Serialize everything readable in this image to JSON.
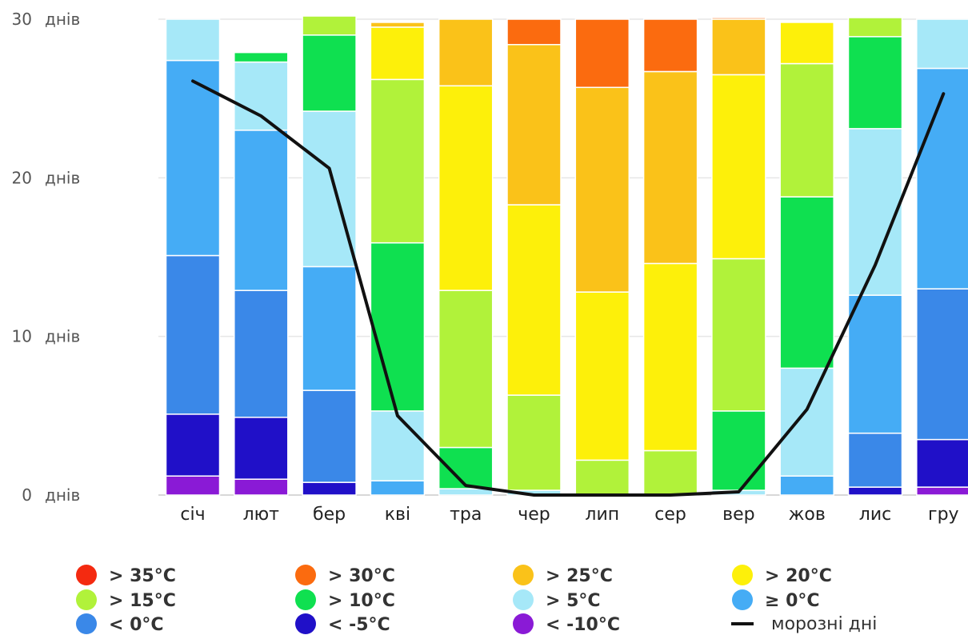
{
  "chart_data": {
    "type": "bar",
    "stacked": true,
    "categories": [
      "січ",
      "лют",
      "бер",
      "кві",
      "тра",
      "чер",
      "лип",
      "сер",
      "вер",
      "жов",
      "лис",
      "гру"
    ],
    "ylim": [
      0,
      30
    ],
    "yticks": [
      0,
      10,
      20,
      30
    ],
    "yunit": "днів",
    "grid": true,
    "legend_position": "bottom",
    "series": [
      {
        "name": "< -10°C",
        "color": "#8a1ad6",
        "values": [
          1.2,
          1.0,
          0,
          0,
          0,
          0,
          0,
          0,
          0,
          0,
          0,
          0.5
        ]
      },
      {
        "name": "< -5°C",
        "color": "#2010c8",
        "values": [
          3.9,
          3.9,
          0.8,
          0,
          0,
          0,
          0,
          0,
          0,
          0,
          0.5,
          3.0
        ]
      },
      {
        "name": "< 0°C",
        "color": "#3a88e8",
        "values": [
          10.0,
          8.0,
          5.8,
          0,
          0,
          0,
          0,
          0,
          0,
          0,
          3.4,
          9.5
        ]
      },
      {
        "name": "≥ 0°C",
        "color": "#45acf5",
        "values": [
          12.3,
          10.1,
          7.8,
          0.9,
          0,
          0,
          0,
          0,
          0,
          1.2,
          8.7,
          13.9
        ]
      },
      {
        "name": "> 5°C",
        "color": "#a6e8f8",
        "values": [
          2.6,
          4.3,
          9.8,
          4.4,
          0.4,
          0.3,
          0,
          0,
          0.3,
          6.8,
          10.5,
          3.1
        ]
      },
      {
        "name": "> 10°C",
        "color": "#0fe050",
        "values": [
          0,
          0.6,
          4.8,
          10.6,
          2.6,
          0,
          0,
          0,
          5.0,
          10.8,
          5.8,
          0
        ]
      },
      {
        "name": "> 15°C",
        "color": "#b1f23a",
        "values": [
          0,
          0,
          1.2,
          10.3,
          9.9,
          6.0,
          2.2,
          2.8,
          9.6,
          8.4,
          1.2,
          0
        ]
      },
      {
        "name": "> 20°C",
        "color": "#fdf00a",
        "values": [
          0,
          0,
          0,
          3.3,
          12.9,
          12.0,
          10.6,
          11.8,
          11.6,
          2.6,
          0,
          0
        ]
      },
      {
        "name": "> 25°C",
        "color": "#fac219",
        "values": [
          0,
          0,
          0,
          0.3,
          4.2,
          10.1,
          12.9,
          12.1,
          3.5,
          0,
          0,
          0
        ]
      },
      {
        "name": "> 30°C",
        "color": "#fb6b0f",
        "values": [
          0,
          0,
          0,
          0,
          0,
          1.6,
          4.3,
          3.3,
          0.1,
          0,
          0,
          0
        ]
      },
      {
        "name": "> 35°C",
        "color": "#f42a10",
        "values": [
          0,
          0,
          0,
          0,
          0,
          0,
          0,
          0,
          0,
          0,
          0,
          0
        ]
      }
    ],
    "line": {
      "name": "морозні дні",
      "color": "#111111",
      "values": [
        26.1,
        23.9,
        20.6,
        5.0,
        0.6,
        0,
        0,
        0,
        0.2,
        5.4,
        14.5,
        25.3
      ]
    },
    "legend": [
      {
        "label": "> 35°C",
        "color": "#f42a10",
        "kind": "dot"
      },
      {
        "label": "> 30°C",
        "color": "#fb6b0f",
        "kind": "dot"
      },
      {
        "label": "> 25°C",
        "color": "#fac219",
        "kind": "dot"
      },
      {
        "label": "> 20°C",
        "color": "#fdf00a",
        "kind": "dot"
      },
      {
        "label": "> 15°C",
        "color": "#b1f23a",
        "kind": "dot"
      },
      {
        "label": "> 10°C",
        "color": "#0fe050",
        "kind": "dot"
      },
      {
        "label": "> 5°C",
        "color": "#a6e8f8",
        "kind": "dot"
      },
      {
        "label": "≥ 0°C",
        "color": "#45acf5",
        "kind": "dot"
      },
      {
        "label": "< 0°C",
        "color": "#3a88e8",
        "kind": "dot"
      },
      {
        "label": "< -5°C",
        "color": "#2010c8",
        "kind": "dot"
      },
      {
        "label": "< -10°C",
        "color": "#8a1ad6",
        "kind": "dot"
      },
      {
        "label": "морозні дні",
        "color": "#111111",
        "kind": "line"
      }
    ]
  }
}
